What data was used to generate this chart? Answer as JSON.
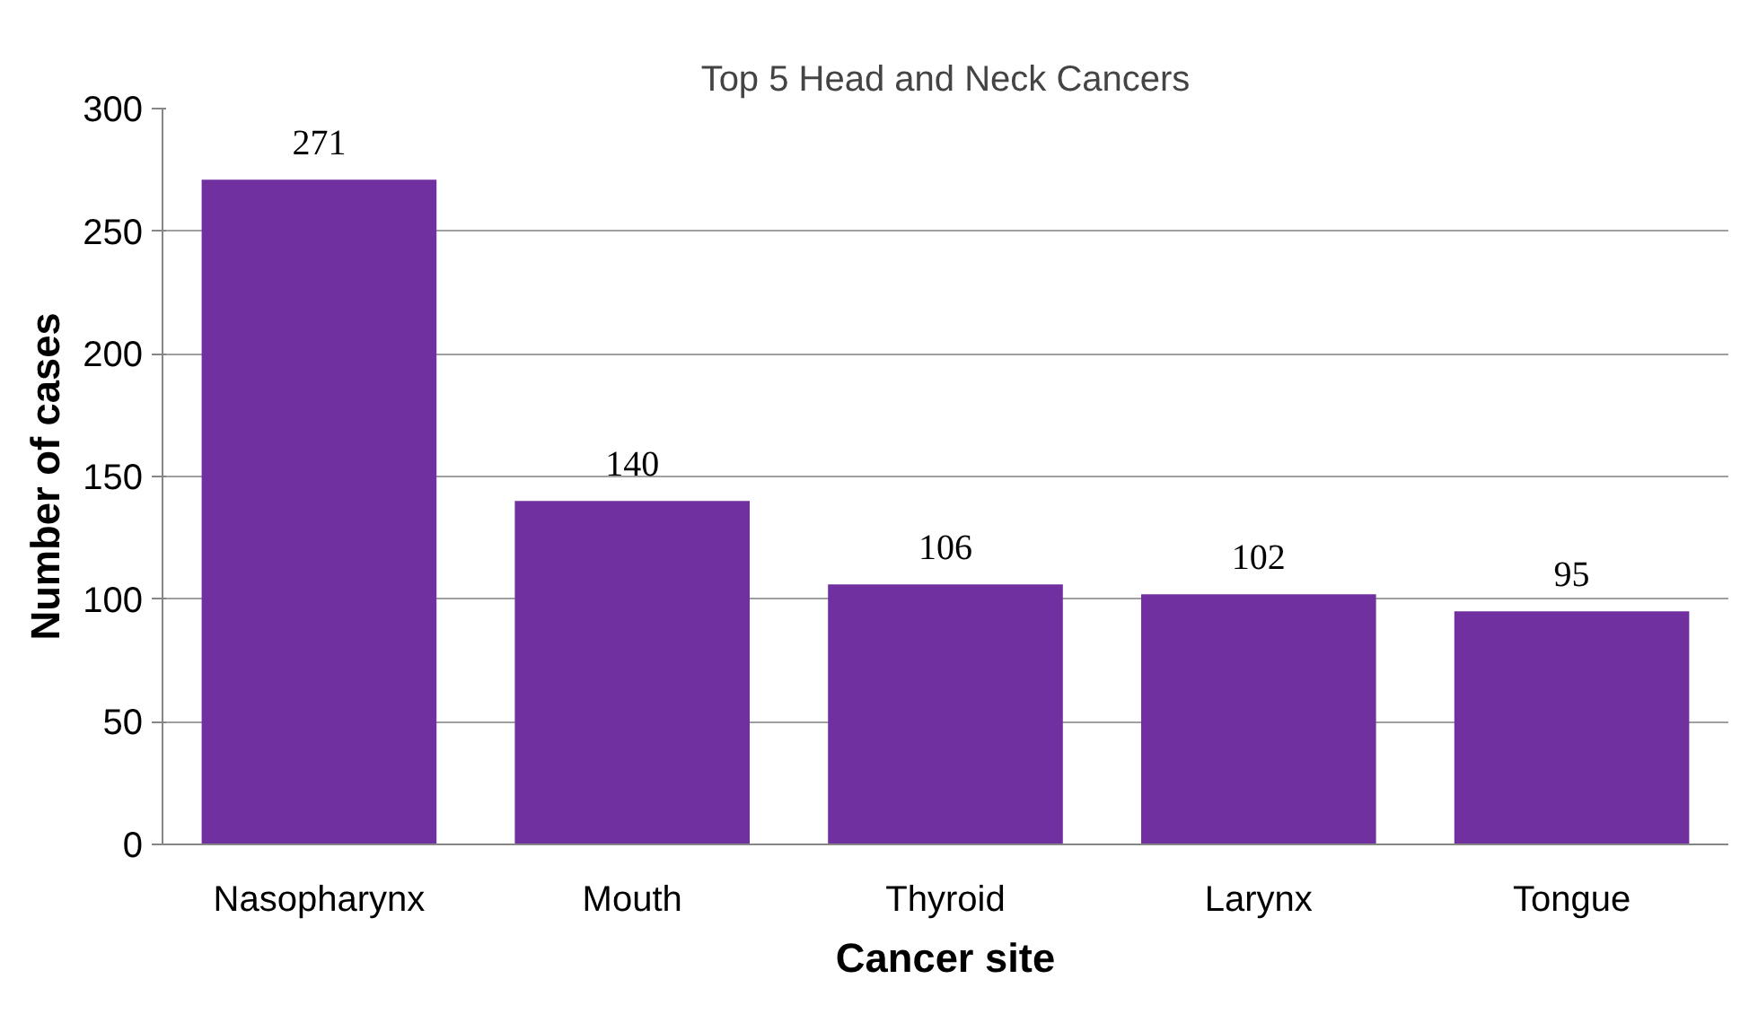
{
  "chart_data": {
    "type": "bar",
    "title": "Top 5 Head and Neck Cancers",
    "xlabel": "Cancer site",
    "ylabel": "Number of cases",
    "categories": [
      "Nasopharynx",
      "Mouth",
      "Thyroid",
      "Larynx",
      "Tongue"
    ],
    "values": [
      271,
      140,
      106,
      102,
      95
    ],
    "color": "#7030a0",
    "ylim": [
      0,
      300
    ],
    "yticks": [
      0,
      50,
      100,
      150,
      200,
      250,
      300
    ],
    "grid": "y",
    "data_labels": true
  }
}
